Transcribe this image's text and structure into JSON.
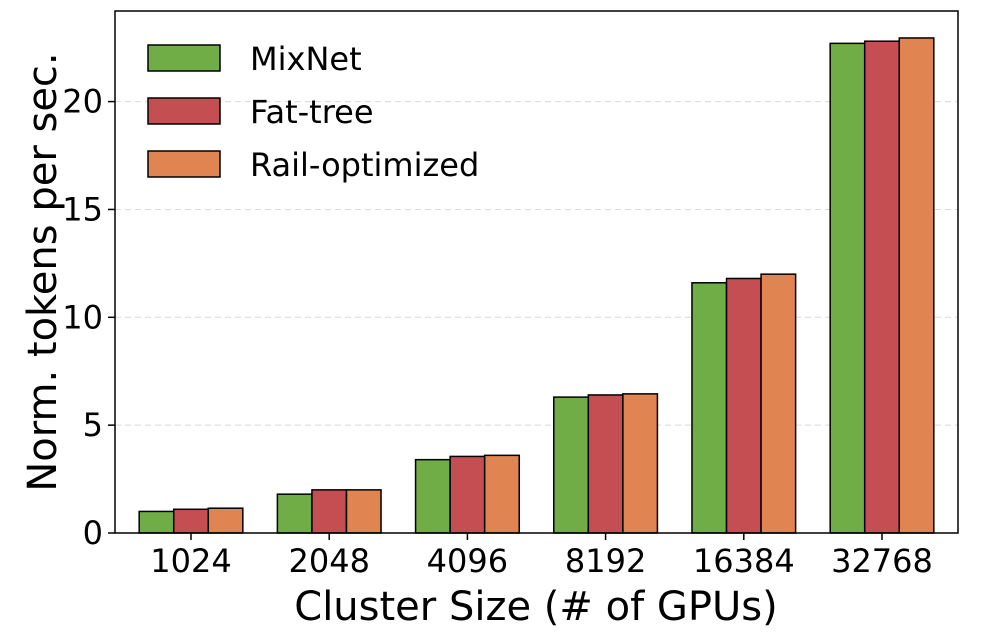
{
  "chart_data": {
    "type": "bar",
    "title": "",
    "xlabel": "Cluster Size (# of GPUs)",
    "ylabel": "Norm. tokens per sec.",
    "categories": [
      "1024",
      "2048",
      "4096",
      "8192",
      "16384",
      "32768"
    ],
    "series": [
      {
        "name": "MixNet",
        "color": "#70ad47",
        "values": [
          1.0,
          1.8,
          3.4,
          6.3,
          11.6,
          22.7
        ]
      },
      {
        "name": "Fat-tree",
        "color": "#c44e52",
        "values": [
          1.1,
          2.0,
          3.55,
          6.4,
          11.8,
          22.8
        ]
      },
      {
        "name": "Rail-optimized",
        "color": "#e08452",
        "values": [
          1.15,
          2.0,
          3.6,
          6.45,
          12.0,
          22.95
        ]
      }
    ],
    "ylim": [
      0,
      24.2
    ],
    "yticks": [
      0,
      5,
      10,
      15,
      20
    ],
    "grid": "y-dashed",
    "legend_position": "top-left"
  }
}
